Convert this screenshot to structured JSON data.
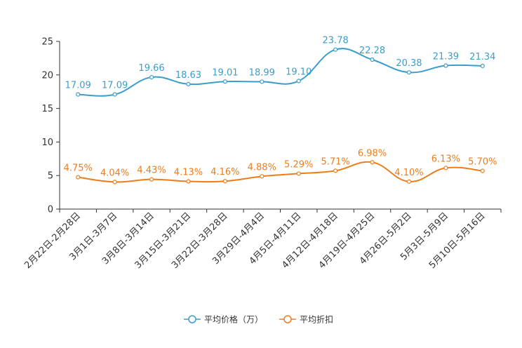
{
  "chart_data": {
    "type": "line",
    "categories": [
      "2月22日-2月28日",
      "3月1日-3月7日",
      "3月8日-3月14日",
      "3月15日-3月21日",
      "3月22日-3月28日",
      "3月29日-4月4日",
      "4月5日-4月11日",
      "4月12日-4月18日",
      "4月19日-4月25日",
      "4月26日-5月2日",
      "5月3日-5月9日",
      "5月10日-5月16日"
    ],
    "series": [
      {
        "name": "平均价格（万）",
        "color": "#3b9dcb",
        "values": [
          17.09,
          17.09,
          19.66,
          18.63,
          19.01,
          18.99,
          19.1,
          23.78,
          22.28,
          20.38,
          21.39,
          21.34
        ],
        "labels": [
          "17.09",
          "17.09",
          "19.66",
          "18.63",
          "19.01",
          "18.99",
          "19.10",
          "23.78",
          "22.28",
          "20.38",
          "21.39",
          "21.34"
        ]
      },
      {
        "name": "平均折扣",
        "color": "#ed7d1c",
        "values": [
          4.75,
          4.04,
          4.43,
          4.13,
          4.16,
          4.88,
          5.29,
          5.71,
          6.98,
          4.1,
          6.13,
          5.7
        ],
        "labels": [
          "4.75%",
          "4.04%",
          "4.43%",
          "4.13%",
          "4.16%",
          "4.88%",
          "5.29%",
          "5.71%",
          "6.98%",
          "4.10%",
          "6.13%",
          "5.70%"
        ]
      }
    ],
    "ylim": [
      0,
      25
    ],
    "yticks": [
      "0",
      "5",
      "10",
      "15",
      "20",
      "25"
    ],
    "ytick_values": [
      0,
      5,
      10,
      15,
      20,
      25
    ],
    "legend_position": "bottom-center",
    "grid": false
  }
}
